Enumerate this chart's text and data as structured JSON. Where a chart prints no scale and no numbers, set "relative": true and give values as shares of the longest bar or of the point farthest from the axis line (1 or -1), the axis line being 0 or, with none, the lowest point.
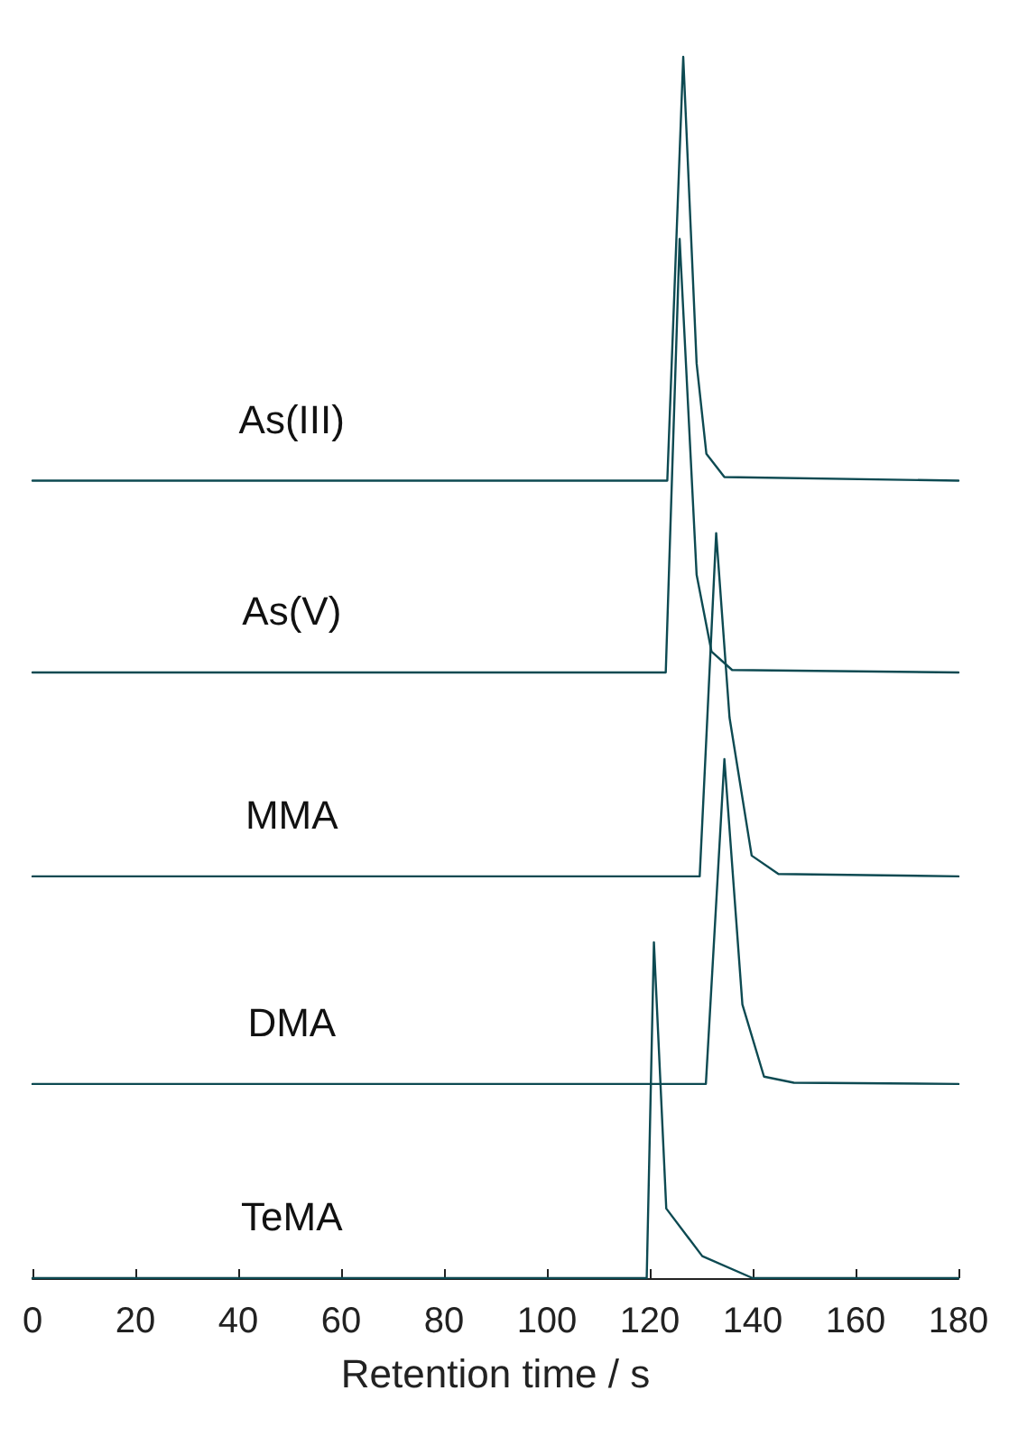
{
  "chart_data": {
    "type": "line",
    "relative": true,
    "xlabel": "Retention time / s",
    "xlim": [
      0,
      180
    ],
    "xticks": [
      0,
      20,
      40,
      60,
      80,
      100,
      120,
      140,
      160,
      180
    ],
    "tick_labels": "x",
    "grid": false,
    "legend": false,
    "marker": "none",
    "line_style": "solid",
    "series": [
      {
        "name": "As(III)",
        "color": "#0d4a52",
        "x": [
          0,
          123.4,
          126.5,
          129.1,
          131,
          134.5,
          180
        ],
        "values": [
          0.653,
          0.653,
          1.0,
          0.749,
          0.675,
          0.656,
          0.653
        ]
      },
      {
        "name": "As(V)",
        "color": "#0d4a52",
        "x": [
          0,
          123.1,
          125.8,
          129.1,
          132,
          136,
          180
        ],
        "values": [
          0.496,
          0.496,
          0.851,
          0.576,
          0.513,
          0.498,
          0.496
        ]
      },
      {
        "name": "MMA",
        "color": "#0d4a52",
        "x": [
          0,
          129.7,
          132.9,
          135.5,
          139.8,
          145,
          180
        ],
        "values": [
          0.329,
          0.329,
          0.61,
          0.459,
          0.346,
          0.331,
          0.329
        ]
      },
      {
        "name": "DMA",
        "color": "#0d4a52",
        "x": [
          0,
          130.9,
          134.5,
          138,
          142.2,
          148,
          180
        ],
        "values": [
          0.159,
          0.159,
          0.425,
          0.224,
          0.165,
          0.16,
          0.159
        ]
      },
      {
        "name": "TeMA",
        "color": "#0d4a52",
        "x": [
          0,
          119.4,
          120.8,
          123.2,
          130.2,
          140,
          180
        ],
        "values": [
          0,
          0,
          0.275,
          0.057,
          0.018,
          0,
          0
        ]
      }
    ]
  }
}
